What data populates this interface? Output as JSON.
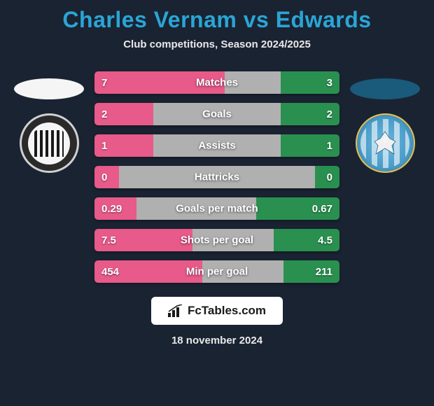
{
  "title": "Charles Vernam vs Edwards",
  "subtitle": "Club competitions, Season 2024/2025",
  "date": "18 november 2024",
  "brand": "FcTables.com",
  "colors": {
    "background": "#1a2332",
    "title": "#2aa5d6",
    "text_light": "#e8e8e8",
    "bar_left": "#e85a8a",
    "bar_right": "#2a9050",
    "bar_neutral": "#b0b0b0",
    "ellipse_left": "#f5f5f5",
    "ellipse_right": "#1a5a7a"
  },
  "left_team": {
    "name": "Grimsby Town"
  },
  "right_team": {
    "name": "Colchester United"
  },
  "stats": [
    {
      "label": "Matches",
      "left_val": "7",
      "right_val": "3",
      "left_pct": 53,
      "right_pct": 24,
      "neutral_pct": 23
    },
    {
      "label": "Goals",
      "left_val": "2",
      "right_val": "2",
      "left_pct": 24,
      "right_pct": 24,
      "neutral_pct": 52
    },
    {
      "label": "Assists",
      "left_val": "1",
      "right_val": "1",
      "left_pct": 24,
      "right_pct": 24,
      "neutral_pct": 52
    },
    {
      "label": "Hattricks",
      "left_val": "0",
      "right_val": "0",
      "left_pct": 10,
      "right_pct": 10,
      "neutral_pct": 80
    },
    {
      "label": "Goals per match",
      "left_val": "0.29",
      "right_val": "0.67",
      "left_pct": 17,
      "right_pct": 34,
      "neutral_pct": 49
    },
    {
      "label": "Shots per goal",
      "left_val": "7.5",
      "right_val": "4.5",
      "left_pct": 40,
      "right_pct": 27,
      "neutral_pct": 33
    },
    {
      "label": "Min per goal",
      "left_val": "454",
      "right_val": "211",
      "left_pct": 44,
      "right_pct": 23,
      "neutral_pct": 33
    }
  ]
}
